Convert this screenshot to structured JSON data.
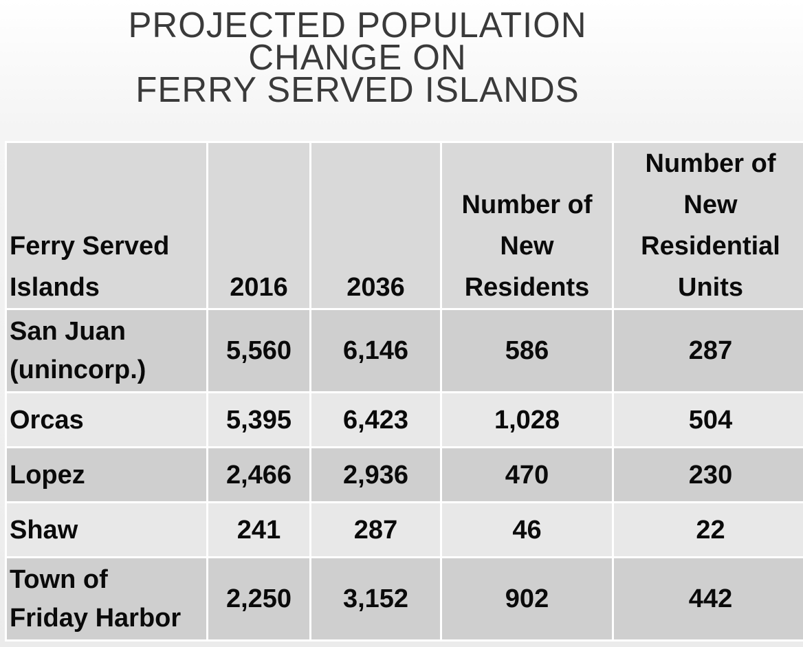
{
  "title": {
    "line1": "PROJECTED POPULATION",
    "line2": "CHANGE ON",
    "line3": "FERRY SERVED ISLANDS"
  },
  "table": {
    "headers": [
      {
        "line1": "Ferry Served",
        "line2": "Islands"
      },
      {
        "line1": "2016"
      },
      {
        "line1": "2036"
      },
      {
        "line1": "Number of",
        "line2": "New",
        "line3": "Residents"
      },
      {
        "line1": "Number of",
        "line2": "New",
        "line3": "Residential",
        "line4": "Units"
      }
    ],
    "rows": [
      {
        "name1": "San Juan",
        "name2": "(unincorp.)",
        "y2016": "5,560",
        "y2036": "6,146",
        "new_residents": "586",
        "new_units": "287"
      },
      {
        "name1": "Orcas",
        "y2016": "5,395",
        "y2036": "6,423",
        "new_residents": "1,028",
        "new_units": "504"
      },
      {
        "name1": "Lopez",
        "y2016": "2,466",
        "y2036": "2,936",
        "new_residents": "470",
        "new_units": "230"
      },
      {
        "name1": "Shaw",
        "y2016": "241",
        "y2036": "287",
        "new_residents": "46",
        "new_units": "22"
      },
      {
        "name1": "Town of",
        "name2": "Friday Harbor",
        "y2016": "2,250",
        "y2036": "3,152",
        "new_residents": "902",
        "new_units": "442"
      }
    ]
  },
  "colors": {
    "header_fill": "#d9d9d9",
    "row_dark": "#cfcfcf",
    "row_light": "#e8e8e8",
    "grid": "#ffffff"
  }
}
